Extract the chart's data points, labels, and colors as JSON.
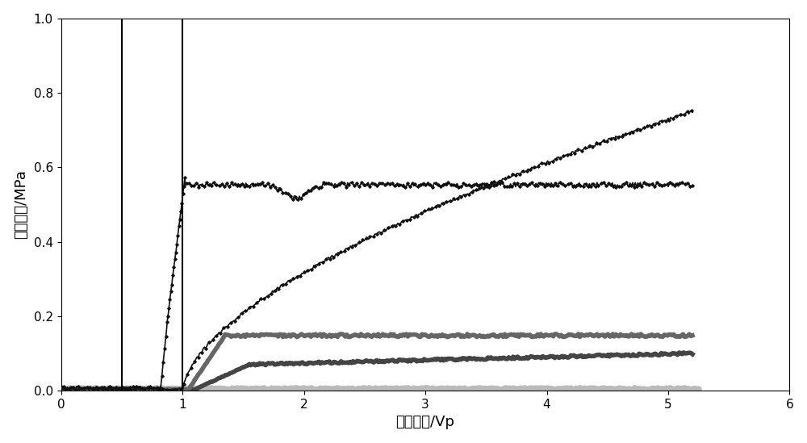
{
  "title": "",
  "xlabel": "注入体积/Vp",
  "ylabel": "注入压力/MPa",
  "xlim": [
    0,
    6
  ],
  "ylim": [
    0,
    1
  ],
  "xticks": [
    0,
    1,
    2,
    3,
    4,
    5,
    6
  ],
  "yticks": [
    0,
    0.2,
    0.4,
    0.6,
    0.8,
    1
  ],
  "vline1_x": 0.5,
  "vline2_x": 1.0,
  "background_color": "#ffffff",
  "plot_bg_color": "#ffffff",
  "font_size": 13,
  "curve1_color": "#111111",
  "curve2_color": "#111111",
  "curve3_color": "#666666",
  "curve4_color": "#444444",
  "curve5_color": "#bbbbbb"
}
